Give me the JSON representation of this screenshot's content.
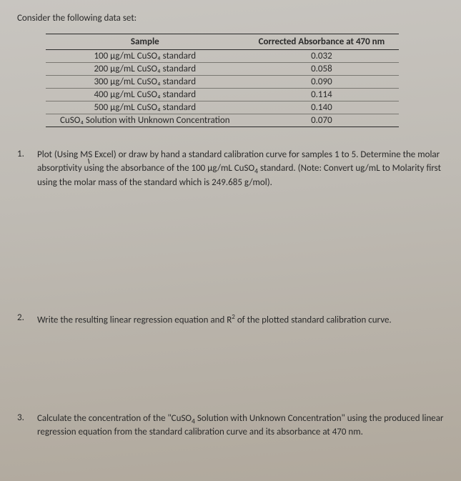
{
  "intro": "Consider the following data set:",
  "table": {
    "columns": [
      "Sample",
      "Corrected Absorbance at 470 nm"
    ],
    "rows": [
      [
        "100 μg/mL CuSO₄ standard",
        "0.032"
      ],
      [
        "200 μg/mL CuSO₄ standard",
        "0.058"
      ],
      [
        "300 μg/mL CuSO₄ standard",
        "0.090"
      ],
      [
        "400 μg/mL CuSO₄ standard",
        "0.114"
      ],
      [
        "500 μg/mL CuSO₄ standard",
        "0.140"
      ],
      [
        "CuSO₄ Solution with Unknown Concentration",
        "0.070"
      ]
    ],
    "border_color": "#2a2a2a",
    "inner_border_color": "#7a7872",
    "font_size": 13
  },
  "questions": [
    {
      "num": "1.",
      "text": "Plot (Using MS Excel) or draw by hand a standard calibration curve for samples 1 to 5. Determine the molar absorptivity using the absorbance of the 100 μg/mL CuSO₄ standard. (Note: Convert ug/mL to Molarity first using the molar mass of the standard which is 249.685 g/mol)."
    },
    {
      "num": "2.",
      "text": "Write the resulting linear regression equation and R² of the plotted standard calibration curve."
    },
    {
      "num": "3.",
      "text": "Calculate the concentration of the \"CuSO₄ Solution with Unknown Concentration\" using the produced linear regression equation from the standard calibration curve and its absorbance at 470 nm."
    }
  ],
  "cursor_visible": true,
  "colors": {
    "text": "#2a2a2a",
    "bg_top": "#c8c5c0",
    "bg_bottom": "#b0a89c"
  }
}
